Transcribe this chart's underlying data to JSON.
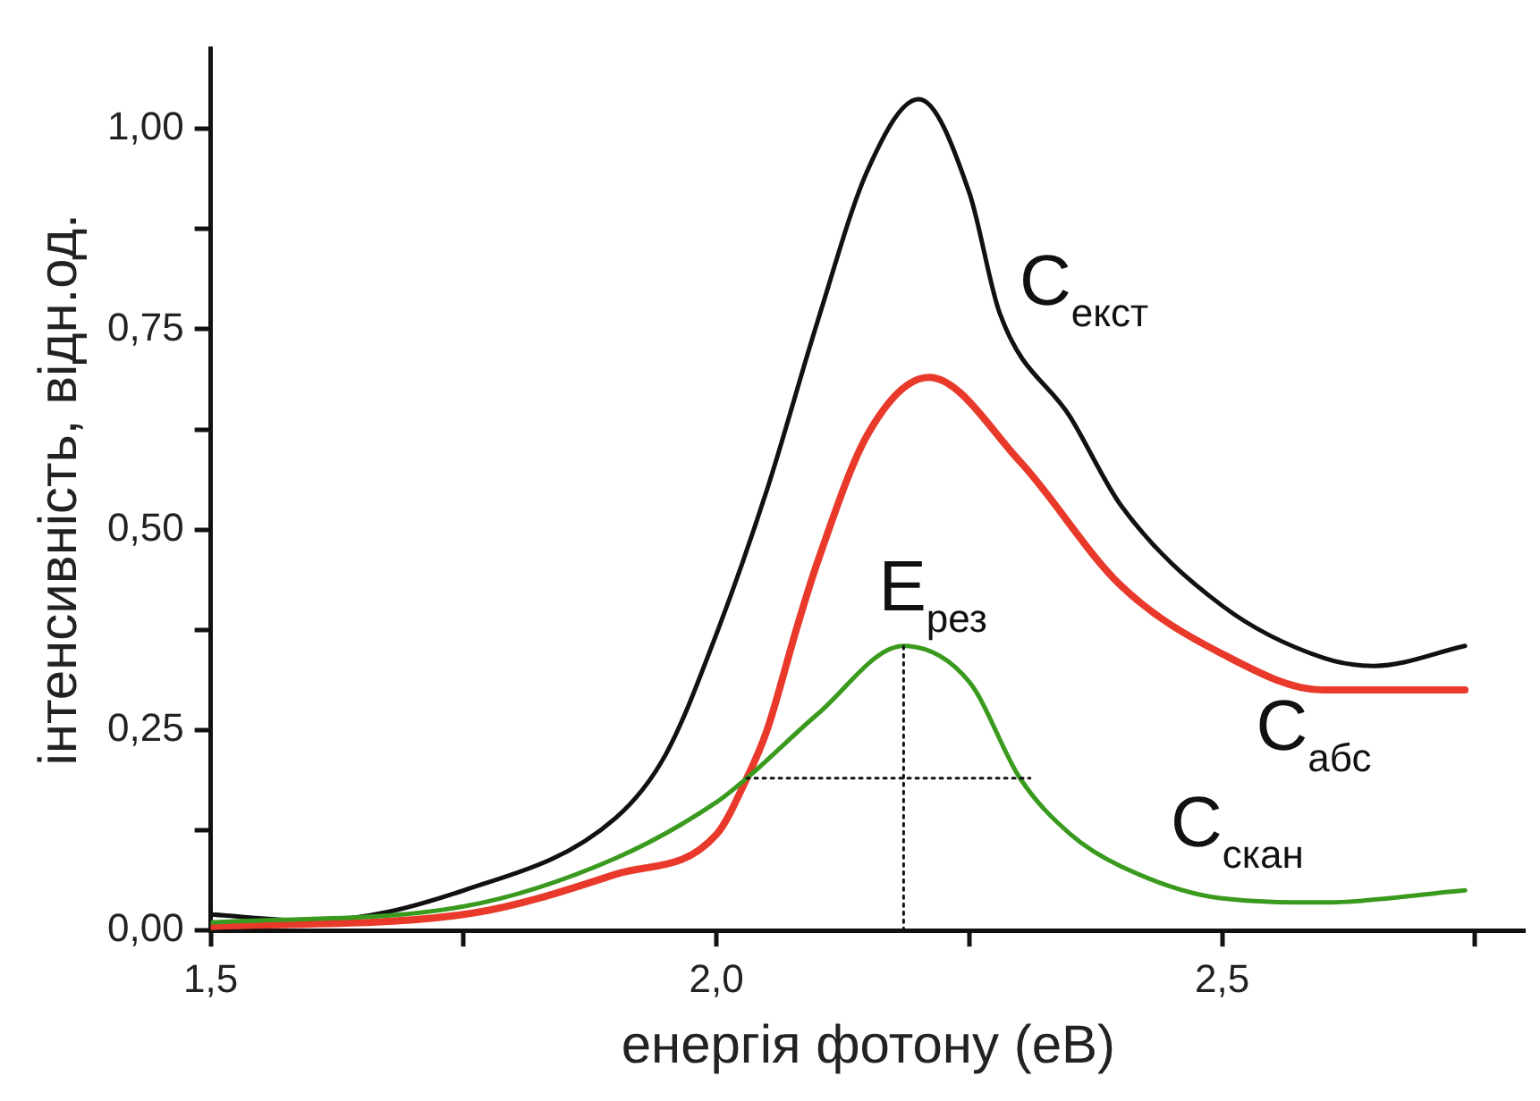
{
  "chart_data": {
    "type": "line",
    "xlabel": "енергія фотону (еВ)",
    "ylabel": "інтенсивність, відн.од.",
    "xlim": [
      1.5,
      2.8
    ],
    "ylim": [
      0,
      1.1
    ],
    "xticks": [
      {
        "value": 1.5,
        "label": "1,5"
      },
      {
        "value": 1.75,
        "label": null
      },
      {
        "value": 2.0,
        "label": "2,0"
      },
      {
        "value": 2.25,
        "label": null
      },
      {
        "value": 2.5,
        "label": "2,5"
      },
      {
        "value": 2.75,
        "label": null
      }
    ],
    "yticks": [
      {
        "value": 0,
        "label": "0,00"
      },
      {
        "value": 0.125,
        "label": null
      },
      {
        "value": 0.25,
        "label": "0,25"
      },
      {
        "value": 0.375,
        "label": null
      },
      {
        "value": 0.5,
        "label": "0,50"
      },
      {
        "value": 0.625,
        "label": null
      },
      {
        "value": 0.75,
        "label": "0,75"
      },
      {
        "value": 0.875,
        "label": null
      },
      {
        "value": 1.0,
        "label": "1,00"
      }
    ],
    "grid": false,
    "legend": false,
    "marker": "none",
    "line_style": "solid",
    "annotations": [
      {
        "text": "E$_{рез}$",
        "x": 2.185,
        "y": 0.355
      }
    ],
    "series": [
      {
        "name": "C$_{екст}$",
        "color": "#111111",
        "x": [
          1.5,
          1.6,
          1.75,
          1.9,
          1.95,
          2.0,
          2.05,
          2.1,
          2.15,
          2.2,
          2.25,
          2.28,
          2.35,
          2.4,
          2.5,
          2.6,
          2.65,
          2.74
        ],
        "values": [
          0.02,
          0.012,
          0.05,
          0.14,
          0.22,
          0.37,
          0.55,
          0.76,
          0.95,
          1.037,
          0.92,
          0.77,
          0.64,
          0.53,
          0.405,
          0.34,
          0.33,
          0.355
        ]
      },
      {
        "name": "C$_{абс}$",
        "color": "#e8392a",
        "x": [
          1.5,
          1.75,
          1.9,
          2.0,
          2.03,
          2.05,
          2.08,
          2.1,
          2.15,
          2.21,
          2.3,
          2.4,
          2.5,
          2.6,
          2.74
        ],
        "values": [
          0.005,
          0.02,
          0.07,
          0.12,
          0.19,
          0.25,
          0.38,
          0.46,
          0.62,
          0.69,
          0.585,
          0.43,
          0.345,
          0.3,
          0.3
        ]
      },
      {
        "name": "C$_{скан}$",
        "color": "#3a9a1e",
        "x": [
          1.5,
          1.75,
          1.9,
          2.0,
          2.03,
          2.1,
          2.185,
          2.25,
          2.3,
          2.35,
          2.4,
          2.5,
          2.6,
          2.74
        ],
        "values": [
          0.01,
          0.03,
          0.09,
          0.16,
          0.19,
          0.27,
          0.355,
          0.31,
          0.19,
          0.12,
          0.08,
          0.04,
          0.035,
          0.05
        ]
      },
      {
        "type": "line",
        "line_style": "dotted",
        "color": "#111111",
        "x": [
          2.185,
          2.185
        ],
        "values": [
          0,
          0.355
        ]
      },
      {
        "type": "line",
        "line_style": "dotted",
        "color": "#111111",
        "x": [
          2.03,
          2.31
        ],
        "values": [
          0.19,
          0.19
        ]
      }
    ]
  }
}
